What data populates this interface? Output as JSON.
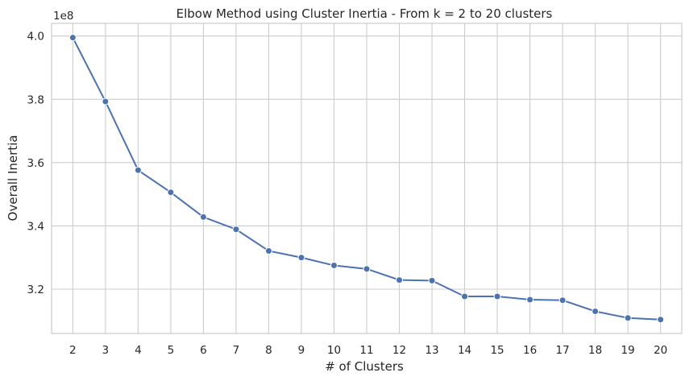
{
  "chart_data": {
    "type": "line",
    "title": "Elbow Method using Cluster Inertia - From k = 2 to 20 clusters",
    "xlabel": "# of Clusters",
    "ylabel": "Overall Inertia",
    "offset_text": "1e8",
    "x": [
      2,
      3,
      4,
      5,
      6,
      7,
      8,
      9,
      10,
      11,
      12,
      13,
      14,
      15,
      16,
      17,
      18,
      19,
      20
    ],
    "y": [
      3.995,
      3.793,
      3.576,
      3.506,
      3.428,
      3.389,
      3.321,
      3.3,
      3.275,
      3.264,
      3.229,
      3.227,
      3.177,
      3.177,
      3.167,
      3.165,
      3.13,
      3.109,
      3.104
    ],
    "xticks": [
      "2",
      "3",
      "4",
      "5",
      "6",
      "7",
      "8",
      "9",
      "10",
      "11",
      "12",
      "13",
      "14",
      "15",
      "16",
      "17",
      "18",
      "19",
      "20"
    ],
    "yticks": [
      3.2,
      3.4,
      3.6,
      3.8,
      4.0
    ],
    "ytick_labels": [
      "3.2",
      "3.4",
      "3.6",
      "3.8",
      "4.0"
    ],
    "xlim": [
      1.35,
      20.65
    ],
    "ylim": [
      3.06,
      4.04
    ],
    "grid": true,
    "markers": true,
    "colors": {
      "line": "#4c72b0",
      "grid": "#cccccc",
      "axes_edge": "#cccccc"
    }
  }
}
